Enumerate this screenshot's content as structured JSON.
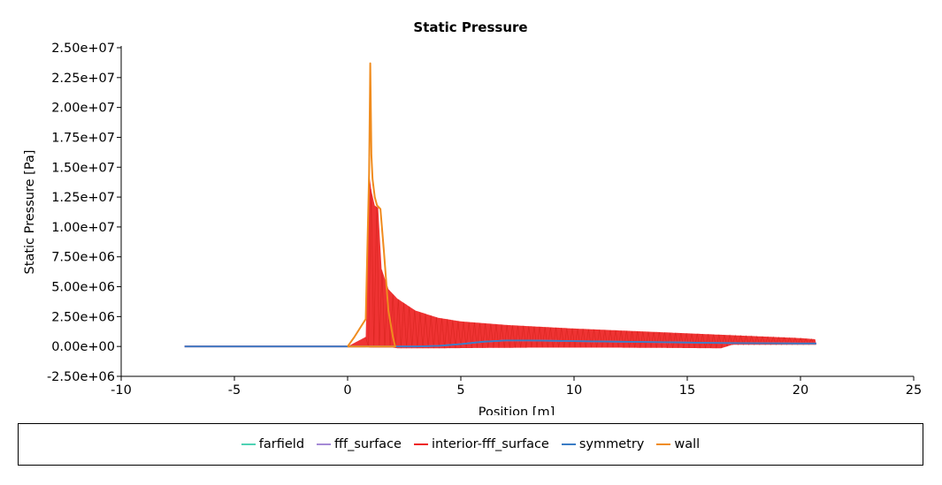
{
  "chart_data": {
    "type": "line",
    "title": "Static Pressure",
    "xlabel": "Position [m]",
    "ylabel": "Static Pressure [Pa]",
    "xlim": [
      -10,
      25
    ],
    "ylim": [
      -2500000,
      25000000
    ],
    "xticks": [
      -10,
      -5,
      0,
      5,
      10,
      15,
      20,
      25
    ],
    "xtick_labels": [
      "-10",
      "-5",
      "0",
      "5",
      "10",
      "15",
      "20",
      "25"
    ],
    "yticks": [
      -2500000,
      0,
      2500000,
      5000000,
      7500000,
      10000000,
      12500000,
      15000000,
      17500000,
      20000000,
      22500000,
      25000000
    ],
    "ytick_labels": [
      "-2.50e+06",
      "0.00e+00",
      "2.50e+06",
      "5.00e+06",
      "7.50e+06",
      "1.00e+07",
      "1.25e+07",
      "1.50e+07",
      "1.75e+07",
      "2.00e+07",
      "2.25e+07",
      "2.50e+07"
    ],
    "grid": false,
    "legend_position": "bottom",
    "series": [
      {
        "name": "farfield",
        "color": "#4fd2b4",
        "x": [],
        "y": []
      },
      {
        "name": "fff_surface",
        "color": "#a58ad6",
        "x": [
          -7.2,
          -3,
          0,
          2,
          3,
          4,
          5,
          6,
          7,
          8,
          10,
          12,
          14,
          16,
          18,
          20,
          20.7
        ],
        "y": [
          0,
          0,
          0,
          0,
          0,
          50000,
          200000,
          400000,
          500000,
          500000,
          450000,
          400000,
          350000,
          300000,
          270000,
          250000,
          250000
        ]
      },
      {
        "name": "interior-fff_surface",
        "color": "#ee2222",
        "x": [
          -7.2,
          0,
          0.8,
          0.95,
          1.05,
          1.2,
          1.35,
          1.5,
          1.8,
          2.2,
          3,
          4,
          5,
          7,
          10,
          15,
          20,
          20.7
        ],
        "y": [
          0,
          0,
          800000,
          14500000,
          13000000,
          11800000,
          11600000,
          6500000,
          4800000,
          4000000,
          3000000,
          2400000,
          2100000,
          1800000,
          1500000,
          1100000,
          700000,
          600000
        ],
        "band_low": [
          -7.2,
          0,
          0.8,
          1.0,
          1.5,
          2.0,
          2.2,
          4,
          8,
          12,
          16.5,
          17,
          20,
          20.7
        ],
        "band_low_y": [
          0,
          0,
          0,
          -100000,
          -100000,
          -100000,
          -150000,
          -150000,
          -100000,
          -100000,
          -150000,
          150000,
          150000,
          150000
        ]
      },
      {
        "name": "symmetry",
        "color": "#3a7cc5",
        "x": [
          -7.2,
          -3,
          0,
          2,
          3,
          4,
          5,
          6,
          7,
          8,
          10,
          12,
          14,
          16,
          18,
          20,
          20.7
        ],
        "y": [
          0,
          0,
          0,
          0,
          0,
          50000,
          200000,
          400000,
          500000,
          500000,
          450000,
          400000,
          350000,
          300000,
          270000,
          250000,
          250000
        ]
      },
      {
        "name": "wall",
        "color": "#f08c1e",
        "x": [
          0,
          0.3,
          0.8,
          0.95,
          1.0,
          1.05,
          1.1,
          1.2,
          1.3,
          1.45,
          1.6,
          1.8,
          2.0,
          2.1,
          1.9,
          1.6,
          1.3,
          1.1,
          1.0,
          0.9,
          0.8,
          0.5,
          0.2,
          0
        ],
        "y": [
          0,
          800000,
          2300000,
          14500000,
          23700000,
          16000000,
          14000000,
          12500000,
          11800000,
          11500000,
          8000000,
          3000000,
          800000,
          0,
          0,
          0,
          0,
          0,
          0,
          0,
          0,
          0,
          0,
          0
        ]
      }
    ]
  }
}
